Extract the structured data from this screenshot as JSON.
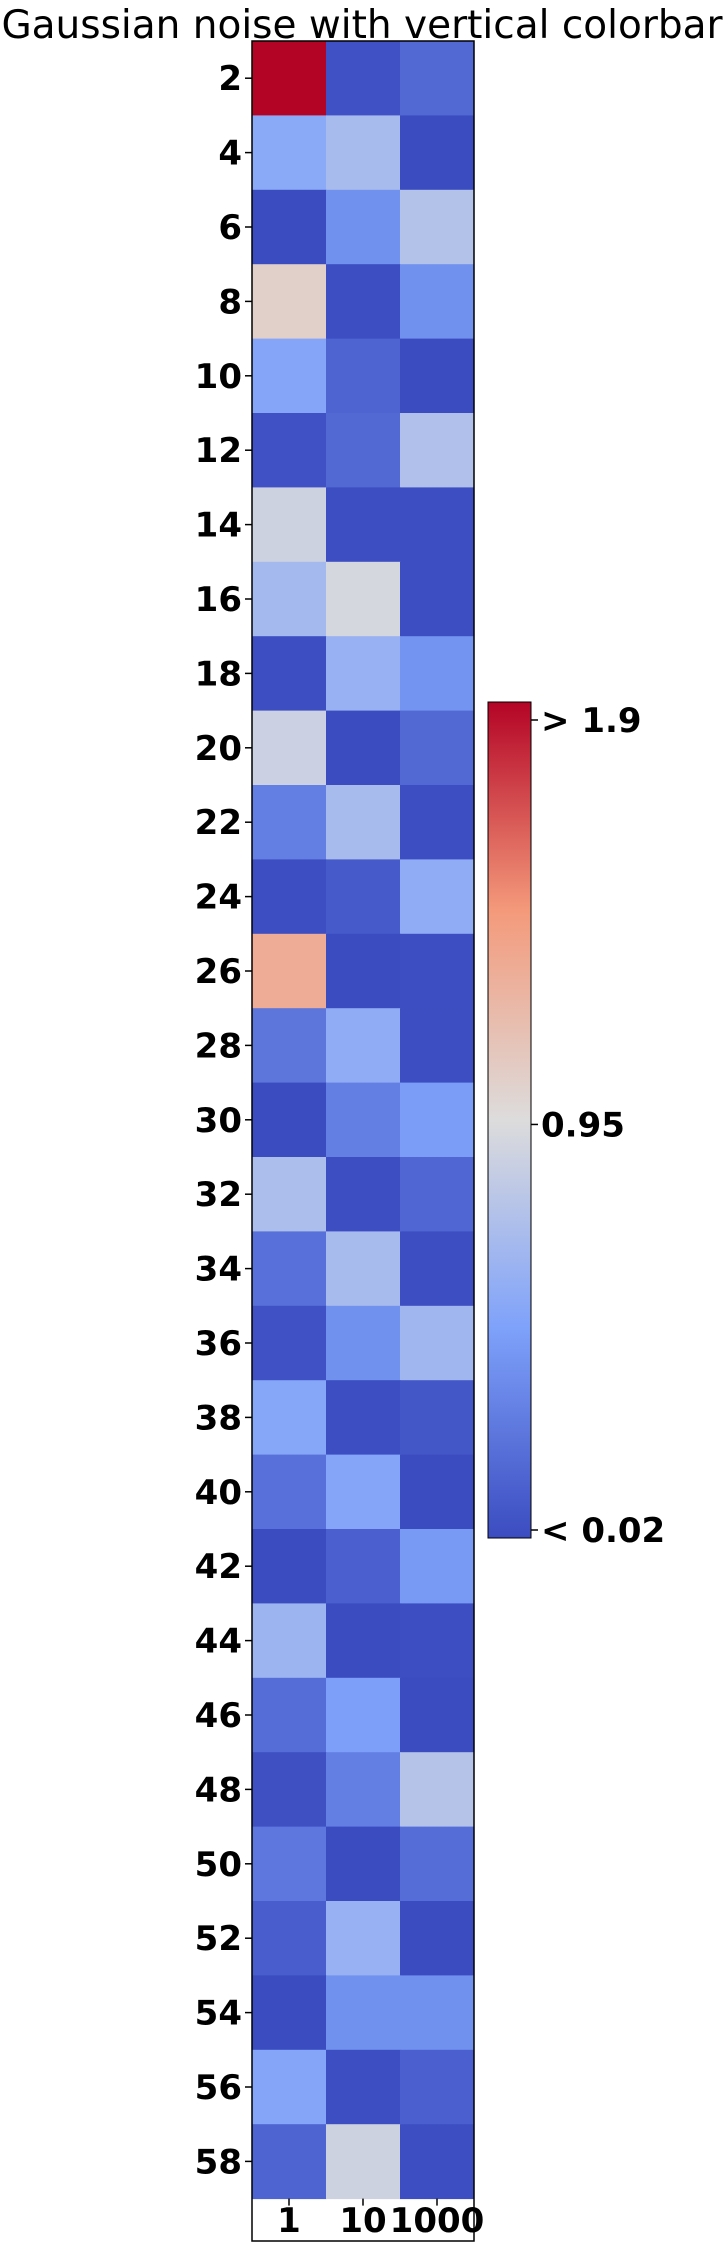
{
  "chart_data": {
    "type": "heatmap",
    "title": "Gaussian noise with vertical colorbar",
    "colormap": "coolwarm",
    "x_categories": [
      "1",
      "10",
      "1000"
    ],
    "y_categories": [
      "2",
      "4",
      "6",
      "8",
      "10",
      "12",
      "14",
      "16",
      "18",
      "20",
      "22",
      "24",
      "26",
      "28",
      "30",
      "32",
      "34",
      "36",
      "38",
      "40",
      "42",
      "44",
      "46",
      "48",
      "50",
      "52",
      "54",
      "56",
      "58"
    ],
    "values": [
      [
        1.9,
        0.05,
        0.18
      ],
      [
        0.55,
        0.7,
        0.02
      ],
      [
        0.02,
        0.4,
        0.75
      ],
      [
        1.05,
        0.03,
        0.4
      ],
      [
        0.52,
        0.15,
        0.02
      ],
      [
        0.05,
        0.18,
        0.74
      ],
      [
        0.88,
        0.03,
        0.03
      ],
      [
        0.68,
        0.92,
        0.03
      ],
      [
        0.03,
        0.62,
        0.42
      ],
      [
        0.87,
        0.02,
        0.18
      ],
      [
        0.3,
        0.7,
        0.03
      ],
      [
        0.03,
        0.1,
        0.58
      ],
      [
        1.3,
        0.02,
        0.03
      ],
      [
        0.25,
        0.58,
        0.03
      ],
      [
        0.02,
        0.3,
        0.47
      ],
      [
        0.72,
        0.03,
        0.17
      ],
      [
        0.22,
        0.7,
        0.03
      ],
      [
        0.05,
        0.4,
        0.66
      ],
      [
        0.53,
        0.03,
        0.08
      ],
      [
        0.22,
        0.52,
        0.02
      ],
      [
        0.02,
        0.13,
        0.45
      ],
      [
        0.64,
        0.02,
        0.03
      ],
      [
        0.2,
        0.48,
        0.02
      ],
      [
        0.04,
        0.3,
        0.76
      ],
      [
        0.26,
        0.02,
        0.2
      ],
      [
        0.12,
        0.62,
        0.02
      ],
      [
        0.02,
        0.4,
        0.4
      ],
      [
        0.52,
        0.03,
        0.13
      ],
      [
        0.15,
        0.88,
        0.03
      ]
    ],
    "vmin": 0.02,
    "vmax": 1.9,
    "colorbar": {
      "orientation": "vertical",
      "ticks": [
        {
          "value": 1.9,
          "label": "> 1.9"
        },
        {
          "value": 0.95,
          "label": "0.95"
        },
        {
          "value": 0.02,
          "label": "< 0.02"
        }
      ]
    }
  }
}
